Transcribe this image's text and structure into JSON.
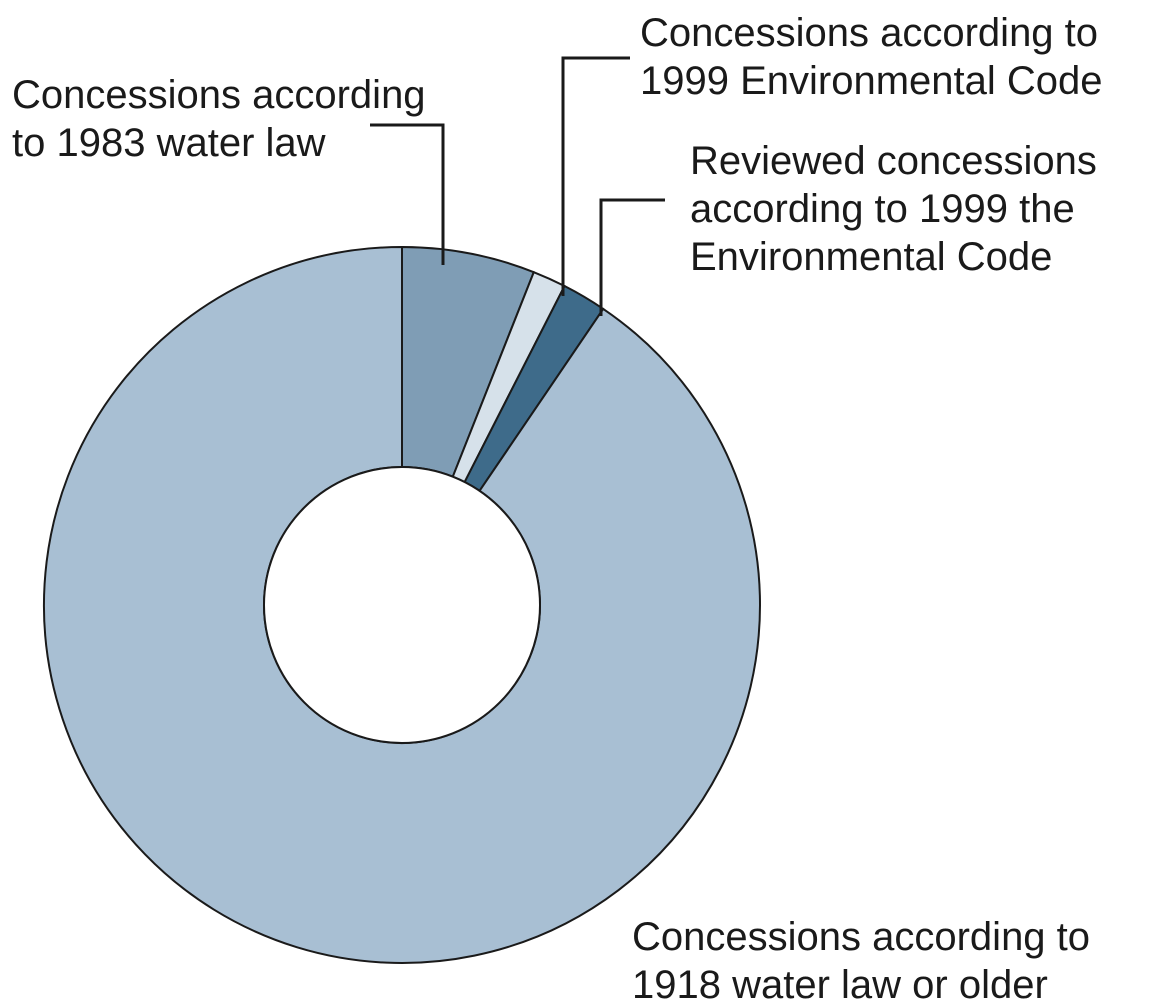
{
  "chart_data": {
    "type": "pie",
    "variant": "donut",
    "title": "",
    "slices": [
      {
        "label": "Concessions according to 1983 water law",
        "label_lines": [
          "Concessions according",
          "to 1983 water law"
        ],
        "value": 6.0,
        "color": "#7f9db5"
      },
      {
        "label": "Concessions according to 1999 Environmental Code",
        "label_lines": [
          "Concessions according to",
          "1999 Environmental Code"
        ],
        "value": 1.5,
        "color": "#d6e1ea"
      },
      {
        "label": "Reviewed concessions according to 1999 the Environmental Code",
        "label_lines": [
          "Reviewed concessions",
          "according to 1999 the",
          "Environmental Code"
        ],
        "value": 2.0,
        "color": "#3e6b8a"
      },
      {
        "label": "Concessions according to 1918 water law or older",
        "label_lines": [
          "Concessions according to",
          "1918 water law or older"
        ],
        "value": 90.5,
        "color": "#a8bfd3"
      }
    ],
    "start_angle": "12 o'clock",
    "direction": "clockwise",
    "legend": "none (leader-line labels)"
  }
}
